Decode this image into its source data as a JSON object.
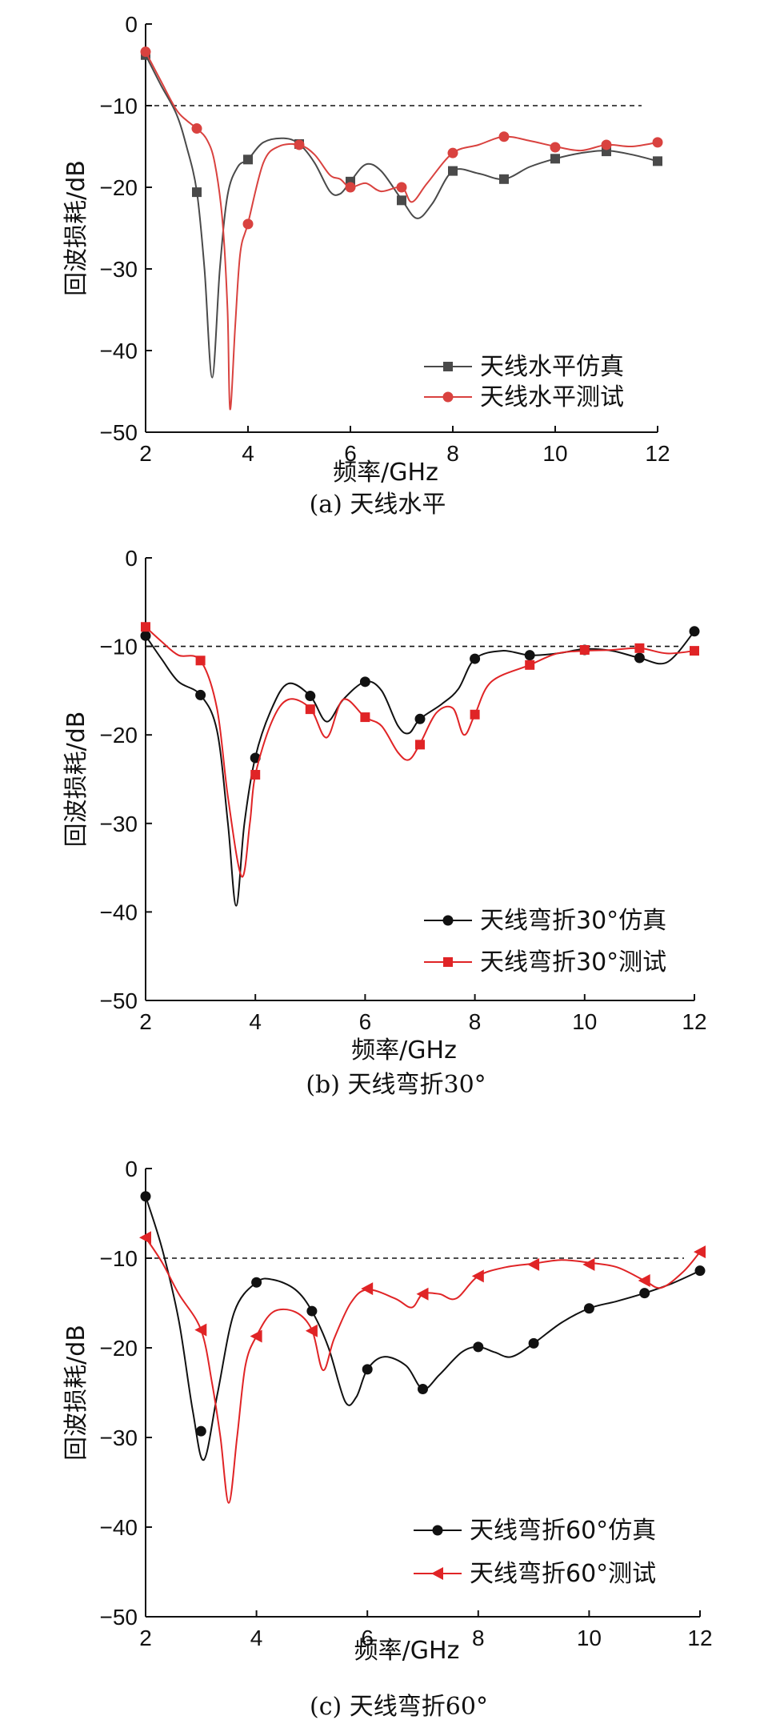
{
  "chart_data": [
    {
      "type": "line",
      "caption": "(a) 天线水平",
      "xlabel": "频率/GHz",
      "ylabel": "回波损耗/dB",
      "xlim": [
        2,
        12
      ],
      "ylim": [
        -50,
        0
      ],
      "xticks": [
        "2",
        "4",
        "6",
        "8",
        "10",
        "12"
      ],
      "yticks": [
        "0",
        "−10",
        "−20",
        "−30",
        "−40",
        "−50"
      ],
      "reference_line": -10,
      "legend_position": "bottom-right",
      "series": [
        {
          "name": "天线水平仿真",
          "color": "#4a4a4a",
          "marker": "square",
          "curve": [
            [
              2,
              -3.8
            ],
            [
              2.3,
              -7.5
            ],
            [
              2.6,
              -11
            ],
            [
              2.8,
              -15
            ],
            [
              3,
              -20.5
            ],
            [
              3.15,
              -30
            ],
            [
              3.3,
              -43.3
            ],
            [
              3.45,
              -30
            ],
            [
              3.6,
              -21
            ],
            [
              3.8,
              -17.5
            ],
            [
              4,
              -16.6
            ],
            [
              4.3,
              -14.5
            ],
            [
              4.7,
              -14
            ],
            [
              5,
              -14.7
            ],
            [
              5.3,
              -17
            ],
            [
              5.6,
              -20.5
            ],
            [
              5.8,
              -20.8
            ],
            [
              6,
              -19.3
            ],
            [
              6.3,
              -17.2
            ],
            [
              6.6,
              -18
            ],
            [
              7,
              -21.5
            ],
            [
              7.3,
              -23.8
            ],
            [
              7.6,
              -22
            ],
            [
              8,
              -18
            ],
            [
              8.5,
              -18.3
            ],
            [
              9,
              -19
            ],
            [
              9.5,
              -17.5
            ],
            [
              10,
              -16.5
            ],
            [
              10.5,
              -15.8
            ],
            [
              11,
              -15.5
            ],
            [
              11.5,
              -16
            ],
            [
              12,
              -16.8
            ]
          ],
          "markers": [
            [
              2,
              -3.8
            ],
            [
              3,
              -20.6
            ],
            [
              4,
              -16.6
            ],
            [
              5,
              -14.7
            ],
            [
              6,
              -19.3
            ],
            [
              7,
              -21.6
            ],
            [
              8,
              -18
            ],
            [
              9,
              -19
            ],
            [
              10,
              -16.5
            ],
            [
              11,
              -15.6
            ],
            [
              12,
              -16.8
            ]
          ]
        },
        {
          "name": "天线水平测试",
          "color": "#d9423f",
          "marker": "circle",
          "curve": [
            [
              2,
              -3.4
            ],
            [
              2.3,
              -7
            ],
            [
              2.6,
              -10.5
            ],
            [
              2.8,
              -11.8
            ],
            [
              3,
              -12.8
            ],
            [
              3.2,
              -14.2
            ],
            [
              3.35,
              -17
            ],
            [
              3.5,
              -24
            ],
            [
              3.6,
              -35
            ],
            [
              3.65,
              -47.2
            ],
            [
              3.75,
              -37
            ],
            [
              3.85,
              -28
            ],
            [
              4,
              -24.4
            ],
            [
              4.3,
              -17
            ],
            [
              4.6,
              -15
            ],
            [
              5,
              -14.8
            ],
            [
              5.3,
              -16
            ],
            [
              5.6,
              -18.5
            ],
            [
              5.8,
              -19
            ],
            [
              6,
              -20
            ],
            [
              6.3,
              -19.5
            ],
            [
              6.6,
              -20.5
            ],
            [
              7,
              -20
            ],
            [
              7.2,
              -21.8
            ],
            [
              7.5,
              -19.5
            ],
            [
              8,
              -15.8
            ],
            [
              8.5,
              -14.8
            ],
            [
              9,
              -13.8
            ],
            [
              9.5,
              -14.3
            ],
            [
              10,
              -15
            ],
            [
              10.5,
              -15.5
            ],
            [
              11,
              -14.8
            ],
            [
              11.5,
              -15
            ],
            [
              12,
              -14.5
            ]
          ],
          "markers": [
            [
              2,
              -3.4
            ],
            [
              3,
              -12.8
            ],
            [
              4,
              -24.5
            ],
            [
              5,
              -14.8
            ],
            [
              6,
              -20
            ],
            [
              7,
              -20
            ],
            [
              8,
              -15.8
            ],
            [
              9,
              -13.8
            ],
            [
              10,
              -15.1
            ],
            [
              11,
              -14.8
            ],
            [
              12,
              -14.5
            ]
          ]
        }
      ]
    },
    {
      "type": "line",
      "caption": "(b) 天线弯折30°",
      "xlabel": "频率/GHz",
      "ylabel": "回波损耗/dB",
      "xlim": [
        2,
        12
      ],
      "ylim": [
        -50,
        0
      ],
      "xticks": [
        "2",
        "4",
        "6",
        "8",
        "10",
        "12"
      ],
      "yticks": [
        "0",
        "−10",
        "−20",
        "−30",
        "−40",
        "−50"
      ],
      "reference_line": -10,
      "legend_position": "bottom-right",
      "series": [
        {
          "name": "天线弯折30°仿真",
          "color": "#111111",
          "marker": "circle",
          "curve": [
            [
              2,
              -8.8
            ],
            [
              2.3,
              -11.5
            ],
            [
              2.6,
              -14
            ],
            [
              3,
              -15.5
            ],
            [
              3.3,
              -19.5
            ],
            [
              3.5,
              -30
            ],
            [
              3.65,
              -39.3
            ],
            [
              3.8,
              -30
            ],
            [
              4,
              -22.5
            ],
            [
              4.3,
              -17
            ],
            [
              4.6,
              -14.2
            ],
            [
              5,
              -15.6
            ],
            [
              5.3,
              -18.5
            ],
            [
              5.6,
              -16
            ],
            [
              6,
              -14
            ],
            [
              6.3,
              -15
            ],
            [
              6.6,
              -19
            ],
            [
              6.8,
              -19.8
            ],
            [
              7,
              -18.2
            ],
            [
              7.4,
              -16.5
            ],
            [
              7.7,
              -14.8
            ],
            [
              8,
              -11.4
            ],
            [
              8.5,
              -10.5
            ],
            [
              9,
              -11
            ],
            [
              9.5,
              -10.8
            ],
            [
              10,
              -10.3
            ],
            [
              10.5,
              -10.5
            ],
            [
              11,
              -11.3
            ],
            [
              11.5,
              -11.8
            ],
            [
              12,
              -8.3
            ]
          ],
          "markers": [
            [
              2,
              -8.8
            ],
            [
              3,
              -15.5
            ],
            [
              4,
              -22.6
            ],
            [
              5,
              -15.6
            ],
            [
              6,
              -14
            ],
            [
              7,
              -18.2
            ],
            [
              8,
              -11.4
            ],
            [
              9,
              -11
            ],
            [
              10,
              -10.4
            ],
            [
              11,
              -11.3
            ],
            [
              12,
              -8.3
            ]
          ]
        },
        {
          "name": "天线弯折30°测试",
          "color": "#e02426",
          "marker": "square",
          "curve": [
            [
              2,
              -7.8
            ],
            [
              2.3,
              -9.5
            ],
            [
              2.6,
              -11
            ],
            [
              3,
              -11.6
            ],
            [
              3.3,
              -17
            ],
            [
              3.5,
              -27
            ],
            [
              3.75,
              -36
            ],
            [
              3.9,
              -30
            ],
            [
              4,
              -24.5
            ],
            [
              4.3,
              -18.5
            ],
            [
              4.6,
              -16
            ],
            [
              5,
              -17
            ],
            [
              5.3,
              -20.3
            ],
            [
              5.6,
              -16
            ],
            [
              6,
              -18
            ],
            [
              6.3,
              -19
            ],
            [
              6.6,
              -22
            ],
            [
              6.8,
              -22.8
            ],
            [
              7,
              -21
            ],
            [
              7.3,
              -17.5
            ],
            [
              7.6,
              -17
            ],
            [
              7.8,
              -20
            ],
            [
              8,
              -17.7
            ],
            [
              8.3,
              -14
            ],
            [
              9,
              -12.1
            ],
            [
              9.5,
              -10.8
            ],
            [
              10,
              -10.5
            ],
            [
              10.5,
              -10.4
            ],
            [
              11,
              -10.2
            ],
            [
              11.5,
              -10.8
            ],
            [
              12,
              -10.5
            ]
          ],
          "markers": [
            [
              2,
              -7.8
            ],
            [
              3,
              -11.6
            ],
            [
              4,
              -24.5
            ],
            [
              5,
              -17.1
            ],
            [
              6,
              -18
            ],
            [
              7,
              -21.1
            ],
            [
              8,
              -17.7
            ],
            [
              9,
              -12.1
            ],
            [
              10,
              -10.4
            ],
            [
              11,
              -10.2
            ],
            [
              12,
              -10.5
            ]
          ]
        }
      ]
    },
    {
      "type": "line",
      "caption": "(c) 天线弯折60°",
      "xlabel": "频率/GHz",
      "ylabel": "回波损耗/dB",
      "xlim": [
        2,
        12
      ],
      "ylim": [
        -50,
        0
      ],
      "xticks": [
        "2",
        "4",
        "6",
        "8",
        "10",
        "12"
      ],
      "yticks": [
        "0",
        "−10",
        "−20",
        "−30",
        "−40",
        "−50"
      ],
      "reference_line": -10,
      "legend_position": "bottom-right",
      "series": [
        {
          "name": "天线弯折60°仿真",
          "color": "#111111",
          "marker": "circle",
          "curve": [
            [
              2,
              -3.1
            ],
            [
              2.3,
              -9
            ],
            [
              2.6,
              -17
            ],
            [
              2.85,
              -27
            ],
            [
              3.05,
              -32.5
            ],
            [
              3.3,
              -25
            ],
            [
              3.6,
              -16
            ],
            [
              4,
              -12.7
            ],
            [
              4.3,
              -12.4
            ],
            [
              4.7,
              -13.5
            ],
            [
              5,
              -15.9
            ],
            [
              5.3,
              -20
            ],
            [
              5.6,
              -26
            ],
            [
              5.8,
              -25.5
            ],
            [
              6,
              -22.4
            ],
            [
              6.3,
              -21
            ],
            [
              6.7,
              -22
            ],
            [
              7,
              -24.6
            ],
            [
              7.3,
              -23
            ],
            [
              7.7,
              -20.5
            ],
            [
              8,
              -19.9
            ],
            [
              8.3,
              -20.5
            ],
            [
              8.6,
              -21
            ],
            [
              9,
              -19.5
            ],
            [
              9.5,
              -17.2
            ],
            [
              10,
              -15.6
            ],
            [
              10.5,
              -14.8
            ],
            [
              11,
              -13.9
            ],
            [
              11.5,
              -12.8
            ],
            [
              12,
              -11.4
            ]
          ],
          "markers": [
            [
              2,
              -3.1
            ],
            [
              3,
              -29.3
            ],
            [
              4,
              -12.7
            ],
            [
              5,
              -15.9
            ],
            [
              6,
              -22.4
            ],
            [
              7,
              -24.6
            ],
            [
              8,
              -19.9
            ],
            [
              9,
              -19.5
            ],
            [
              10,
              -15.6
            ],
            [
              11,
              -13.9
            ],
            [
              12,
              -11.4
            ]
          ]
        },
        {
          "name": "天线弯折60°测试",
          "color": "#e02426",
          "marker": "triangle-left",
          "curve": [
            [
              2,
              -7.7
            ],
            [
              2.3,
              -10.5
            ],
            [
              2.6,
              -14
            ],
            [
              3,
              -18
            ],
            [
              3.2,
              -24
            ],
            [
              3.35,
              -30
            ],
            [
              3.5,
              -37.3
            ],
            [
              3.65,
              -30
            ],
            [
              3.8,
              -22
            ],
            [
              4,
              -18.7
            ],
            [
              4.3,
              -16
            ],
            [
              4.7,
              -16
            ],
            [
              5,
              -18
            ],
            [
              5.2,
              -22.5
            ],
            [
              5.4,
              -19
            ],
            [
              5.7,
              -15
            ],
            [
              6,
              -13.5
            ],
            [
              6.5,
              -14.5
            ],
            [
              6.8,
              -15.5
            ],
            [
              7,
              -14
            ],
            [
              7.3,
              -14
            ],
            [
              7.6,
              -14.5
            ],
            [
              8,
              -12
            ],
            [
              8.5,
              -11
            ],
            [
              9,
              -10.6
            ],
            [
              9.5,
              -10.2
            ],
            [
              10,
              -10.5
            ],
            [
              10.5,
              -11
            ],
            [
              11,
              -12.5
            ],
            [
              11.3,
              -13.3
            ],
            [
              11.7,
              -11.5
            ],
            [
              12,
              -9.3
            ]
          ],
          "markers": [
            [
              2,
              -7.7
            ],
            [
              3,
              -18
            ],
            [
              4,
              -18.7
            ],
            [
              5,
              -18.1
            ],
            [
              6,
              -13.4
            ],
            [
              7,
              -14
            ],
            [
              8,
              -12
            ],
            [
              9,
              -10.7
            ],
            [
              10,
              -10.7
            ],
            [
              11,
              -12.5
            ],
            [
              12,
              -9.3
            ]
          ]
        }
      ]
    }
  ]
}
